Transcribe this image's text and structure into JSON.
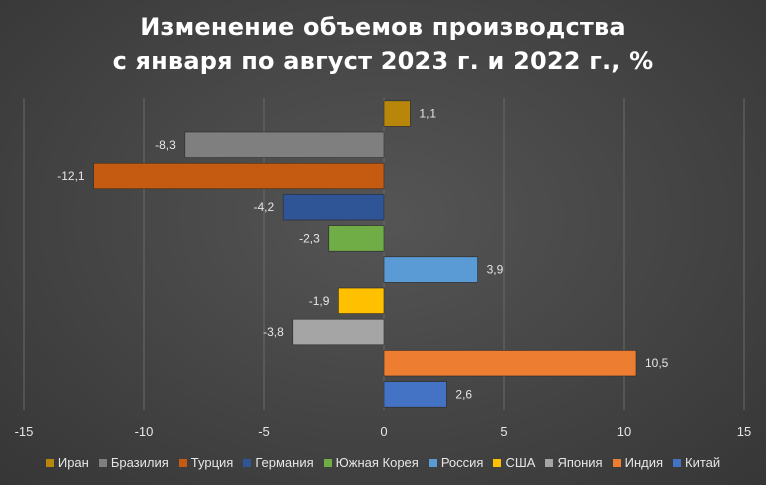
{
  "chart_data": {
    "type": "bar",
    "orientation": "horizontal",
    "title_lines": [
      "Изменение объемов производства",
      "с января по август 2023 г. и 2022 г., %"
    ],
    "series": [
      {
        "name": "Иран",
        "value": 1.1,
        "label": "1,1",
        "color": "#B8860B"
      },
      {
        "name": "Бразилия",
        "value": -8.3,
        "label": "-8,3",
        "color": "#7F7F7F"
      },
      {
        "name": "Турция",
        "value": -12.1,
        "label": "-12,1",
        "color": "#C55A11"
      },
      {
        "name": "Германия",
        "value": -4.2,
        "label": "-4,2",
        "color": "#2F5597"
      },
      {
        "name": "Южная Корея",
        "value": -2.3,
        "label": "-2,3",
        "color": "#70AD47"
      },
      {
        "name": "Россия",
        "value": 3.9,
        "label": "3,9",
        "color": "#5B9BD5"
      },
      {
        "name": "США",
        "value": -1.9,
        "label": "-1,9",
        "color": "#FFC000"
      },
      {
        "name": "Япония",
        "value": -3.8,
        "label": "-3,8",
        "color": "#A5A5A5"
      },
      {
        "name": "Индия",
        "value": 10.5,
        "label": "10,5",
        "color": "#ED7D31"
      },
      {
        "name": "Китай",
        "value": 2.6,
        "label": "2,6",
        "color": "#4472C4"
      }
    ],
    "xlim": [
      -15,
      15
    ],
    "xticks": [
      -15,
      -10,
      -5,
      0,
      5,
      10,
      15
    ],
    "grid": "vertical",
    "legend_position": "bottom"
  }
}
